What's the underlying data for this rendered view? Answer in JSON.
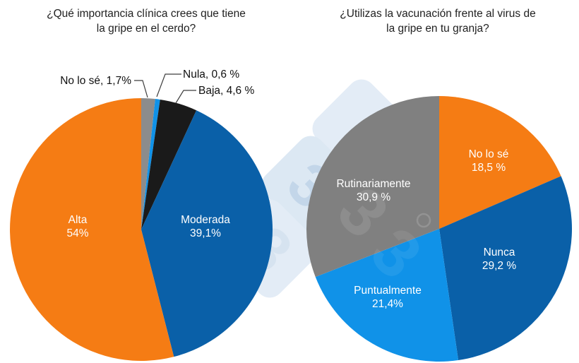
{
  "chart_data": [
    {
      "type": "pie",
      "id": "clinical-importance",
      "title": "¿Qué importancia clínica crees que tiene la gripe en el cerdo?",
      "title_line1": "¿Qué importancia clínica crees que tiene",
      "title_line2": "la gripe en el cerdo?",
      "direction": "clockwise",
      "start_angle_deg": 0,
      "legend": "none",
      "slices": [
        {
          "label": "No lo sé",
          "value": 1.7,
          "display": "No lo sé, 1,7%",
          "color": "#8C8C8C",
          "label_mode": "callout"
        },
        {
          "label": "Nula",
          "value": 0.6,
          "display": "Nula, 0,6 %",
          "color": "#1092E8",
          "label_mode": "callout"
        },
        {
          "label": "Baja",
          "value": 4.6,
          "display": "Baja, 4,6 %",
          "color": "#1A1A1A",
          "label_mode": "callout"
        },
        {
          "label": "Moderada",
          "value": 39.1,
          "value_display": "39,1%",
          "color": "#0A60A8",
          "label_mode": "inside"
        },
        {
          "label": "Alta",
          "value": 54.0,
          "value_display": "54%",
          "color": "#F57C14",
          "label_mode": "inside"
        }
      ]
    },
    {
      "type": "pie",
      "id": "vaccination-use",
      "title": "¿Utilizas la vacunación frente al virus de la gripe en tu granja?",
      "title_line1": "¿Utilizas la vacunación frente al virus de",
      "title_line2": "la gripe en tu granja?",
      "direction": "clockwise",
      "start_angle_deg": 0,
      "legend": "none",
      "slices": [
        {
          "label": "No lo sé",
          "value": 18.5,
          "value_display": "18,5 %",
          "color": "#F57C14",
          "label_mode": "inside"
        },
        {
          "label": "Nunca",
          "value": 29.2,
          "value_display": "29,2 %",
          "color": "#0A60A8",
          "label_mode": "inside"
        },
        {
          "label": "Puntualmente",
          "value": 21.4,
          "value_display": "21,4%",
          "color": "#1092E8",
          "label_mode": "inside"
        },
        {
          "label": "Rutinariamente",
          "value": 30.9,
          "value_display": "30,9 %",
          "color": "#808080",
          "label_mode": "inside"
        }
      ]
    }
  ],
  "watermark": {
    "digit": "3",
    "diamond_color": "#DCE8F3",
    "digit_color": "#C3D6E9"
  },
  "colors": {
    "background": "#FFFFFF",
    "title_text": "#212121",
    "inside_label_text": "#FFFFFF",
    "callout_text": "#101010",
    "orange": "#F57C14",
    "dark_blue": "#0A60A8",
    "light_blue": "#1092E8",
    "black_slice": "#1A1A1A",
    "gray_slice": "#808080"
  }
}
